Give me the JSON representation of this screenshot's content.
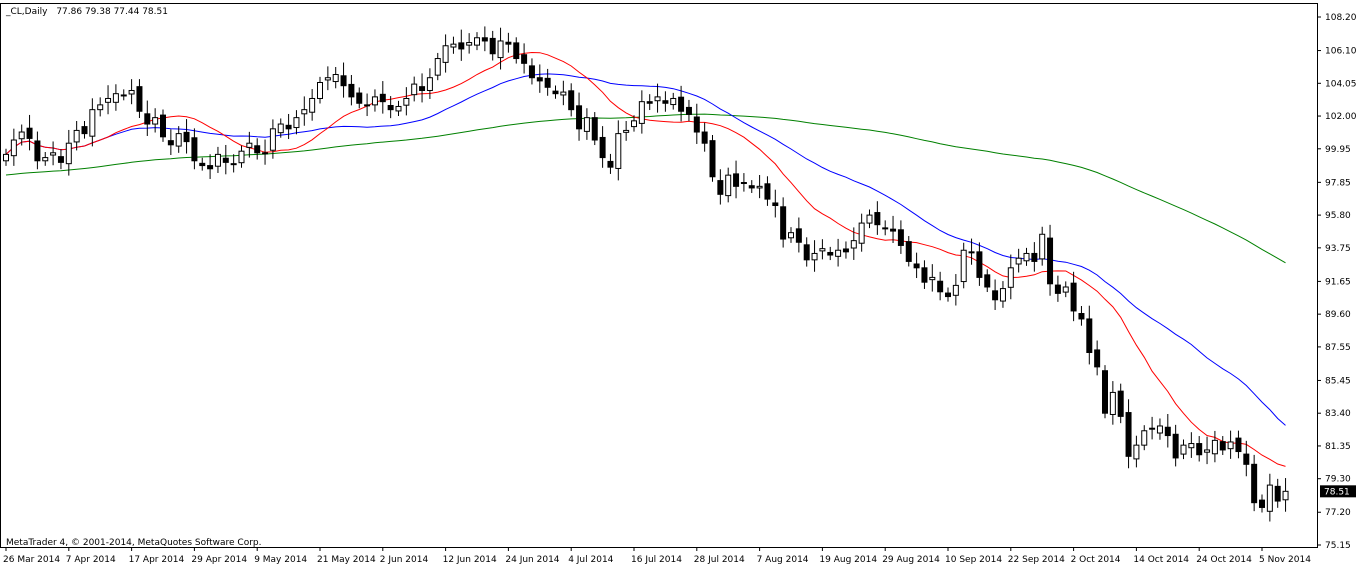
{
  "header": {
    "symbol": "_CL,Daily",
    "ohlc": "77.86 79.38 77.44 78.51"
  },
  "footer": {
    "copyright": "MetaTrader 4, © 2001-2014, MetaQuotes Software Corp."
  },
  "colors": {
    "background": "#ffffff",
    "candle": "#000000",
    "ma_fast": "#ff0000",
    "ma_mid": "#0000ff",
    "ma_slow": "#008000",
    "price_tag_bg": "#000000",
    "price_tag_text": "#ffffff"
  },
  "chart_data": {
    "type": "candlestick",
    "ylim": [
      75.15,
      108.2
    ],
    "y_ticks": [
      108.2,
      106.1,
      104.05,
      102.0,
      99.95,
      97.85,
      95.8,
      93.75,
      91.65,
      89.6,
      87.55,
      85.45,
      83.4,
      81.35,
      79.3,
      77.2,
      75.15
    ],
    "y_tick_labels": [
      "108.20",
      "106.10",
      "104.05",
      "102.00",
      "99.95",
      "97.85",
      "95.80",
      "93.75",
      "91.65",
      "89.60",
      "87.55",
      "85.45",
      "83.40",
      "81.35",
      "79.30",
      "77.20",
      "75.15"
    ],
    "x_tick_labels": [
      "26 Mar 2014",
      "7 Apr 2014",
      "17 Apr 2014",
      "29 Apr 2014",
      "9 May 2014",
      "21 May 2014",
      "2 Jun 2014",
      "12 Jun 2014",
      "24 Jun 2014",
      "4 Jul 2014",
      "16 Jul 2014",
      "28 Jul 2014",
      "7 Aug 2014",
      "19 Aug 2014",
      "29 Aug 2014",
      "10 Sep 2014",
      "22 Sep 2014",
      "2 Oct 2014",
      "14 Oct 2014",
      "24 Oct 2014",
      "5 Nov 2014"
    ],
    "x_tick_bar_index": [
      0,
      8,
      16,
      24,
      32,
      40,
      48,
      56,
      64,
      72,
      80,
      88,
      96,
      104,
      112,
      120,
      128,
      136,
      144,
      152,
      160
    ],
    "current_price": "78.51",
    "closes": [
      99.6,
      100.5,
      101.0,
      100.6,
      99.2,
      99.4,
      99.7,
      99.1,
      100.3,
      101.1,
      100.9,
      102.4,
      102.7,
      103.1,
      103.4,
      103.3,
      103.6,
      102.3,
      101.5,
      101.9,
      100.7,
      100.2,
      100.9,
      100.4,
      99.2,
      98.9,
      98.7,
      99.6,
      99.1,
      99.0,
      99.8,
      100.3,
      99.7,
      99.7,
      101.2,
      101.5,
      101.2,
      101.9,
      102.4,
      103.1,
      104.1,
      104.4,
      104.6,
      103.9,
      103.2,
      102.8,
      102.7,
      103.2,
      102.9,
      102.4,
      102.6,
      103.1,
      104.0,
      103.6,
      104.4,
      105.6,
      106.4,
      106.5,
      106.2,
      106.6,
      106.9,
      106.7,
      105.9,
      106.7,
      106.5,
      105.6,
      105.3,
      104.4,
      104.2,
      103.8,
      103.4,
      103.5,
      102.4,
      101.2,
      101.9,
      100.5,
      99.4,
      98.8,
      100.9,
      101.1,
      101.7,
      102.9,
      102.8,
      103.2,
      102.8,
      103.1,
      102.3,
      102.1,
      101.0,
      100.3,
      98.2,
      97.1,
      98.3,
      97.6,
      97.8,
      97.5,
      97.6,
      96.8,
      96.4,
      94.3,
      94.7,
      94.1,
      93.0,
      93.4,
      93.7,
      93.3,
      93.6,
      93.5,
      94.2,
      95.3,
      95.8,
      95.2,
      95.0,
      94.8,
      93.9,
      92.9,
      92.5,
      91.6,
      91.9,
      91.0,
      90.7,
      91.4,
      93.6,
      93.5,
      91.9,
      91.3,
      90.5,
      91.2,
      92.5,
      93.1,
      93.4,
      92.9,
      94.6,
      91.5,
      90.9,
      91.3,
      89.8,
      89.3,
      87.2,
      86.3,
      83.4,
      84.7,
      83.2,
      80.7,
      81.4,
      82.3,
      82.4,
      82.6,
      82.0,
      80.6,
      81.4,
      81.5,
      80.8,
      81.1,
      81.7,
      81.1,
      81.6,
      81.0,
      80.2,
      77.8,
      77.5,
      78.9,
      77.9,
      78.51
    ],
    "ma_fast_last": 81.6,
    "ma_mid_last": 86.0,
    "ma_slow_last": 94.6
  }
}
